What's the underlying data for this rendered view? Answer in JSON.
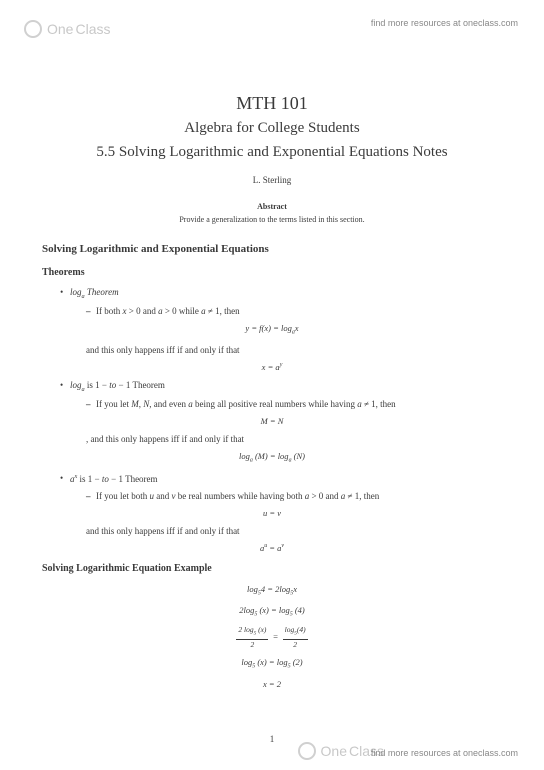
{
  "brand": {
    "name_left": "One",
    "name_right": "Class"
  },
  "resources_text": "find more resources at oneclass.com",
  "titles": {
    "course": "MTH 101",
    "subtitle": "Algebra for College Students",
    "section": "5.5 Solving Logarithmic and Exponential Equations Notes",
    "author": "L. Sterling"
  },
  "abstract": {
    "heading": "Abstract",
    "text": "Provide a generalization to the terms listed in this section."
  },
  "h_main": "Solving Logarithmic and Exponential Equations",
  "h_theorems": "Theorems",
  "theorem1": {
    "name": "logₐ Theorem",
    "premise": "If both x > 0 and a > 0 while a ≠ 1, then",
    "eq1": "y = f(x) = logₐx",
    "mid": "and this only happens iff if and only if that",
    "eq2": "x = aʸ"
  },
  "theorem2": {
    "name": "logₐ is 1 − to − 1 Theorem",
    "premise": "If you let M, N, and even a being all positive real numbers while having a ≠ 1, then",
    "eq1": "M = N",
    "mid": ", and this only happens iff if and only if that",
    "eq2": "logₐ (M) = logₐ (N)"
  },
  "theorem3": {
    "name": "aˣ is 1 − to − 1 Theorem",
    "premise": "If you let both u and v be real numbers while having both a > 0 and a ≠ 1, then",
    "eq1": "u = v",
    "mid": "and this only happens iff if and only if that",
    "eq2": "aᵘ = aᵛ"
  },
  "h_example": "Solving Logarithmic Equation Example",
  "example": {
    "line1": "log₅4 = 2log₅x",
    "line2": "2log₅ (x) = log₅ (4)",
    "frac_n": "2 log₅ (x)",
    "frac_d": "2",
    "frac_rn": "log₅(4)",
    "frac_rd": "2",
    "line4": "log₅ (x) = log₅ (2)",
    "line5": "x = 2"
  },
  "page_number": "1",
  "colors": {
    "text": "#3a3a3a",
    "watermark": "#c8c8c8",
    "resource_text": "#888888",
    "background": "#ffffff"
  },
  "fonts": {
    "body_family": "Georgia, Times New Roman, serif",
    "ui_family": "Arial, sans-serif",
    "title_size_pt": 18,
    "subtitle_size_pt": 15,
    "body_size_pt": 9,
    "heading_size_pt": 11
  }
}
